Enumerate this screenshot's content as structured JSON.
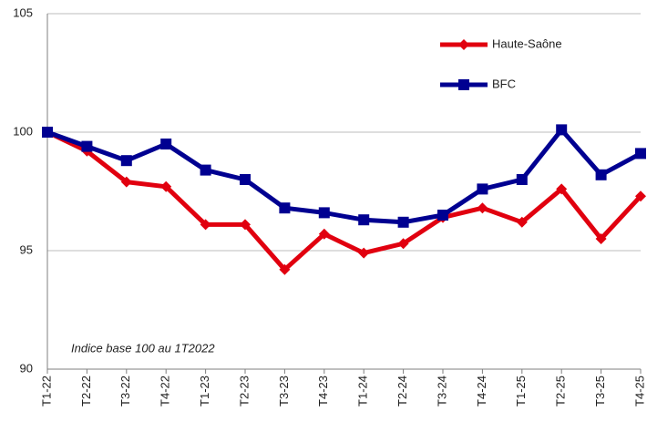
{
  "chart_data": {
    "type": "line",
    "annotation": "Indice base 100 au 1T2022",
    "categories": [
      "T1-22",
      "T2-22",
      "T3-22",
      "T4-22",
      "T1-23",
      "T2-23",
      "T3-23",
      "T4-23",
      "T1-24",
      "T2-24",
      "T3-24",
      "T4-24",
      "T1-25",
      "T2-25",
      "T3-25",
      "T4-25"
    ],
    "series": [
      {
        "name": "Haute-Saône",
        "color": "#e1000f",
        "marker": "diamond",
        "values": [
          100,
          99.2,
          97.9,
          97.7,
          96.1,
          96.1,
          94.2,
          95.7,
          94.9,
          95.3,
          96.4,
          96.8,
          96.2,
          97.6,
          95.5,
          97.3
        ]
      },
      {
        "name": "BFC",
        "color": "#000091",
        "marker": "square",
        "values": [
          100,
          99.4,
          98.8,
          99.5,
          98.4,
          98.0,
          96.8,
          96.6,
          96.3,
          96.2,
          96.5,
          97.6,
          98.0,
          100.1,
          98.2,
          99.1
        ]
      }
    ],
    "ylim": [
      90,
      105
    ],
    "yticks": [
      90,
      95,
      100,
      105
    ],
    "grid": true,
    "legend": "top-right"
  }
}
